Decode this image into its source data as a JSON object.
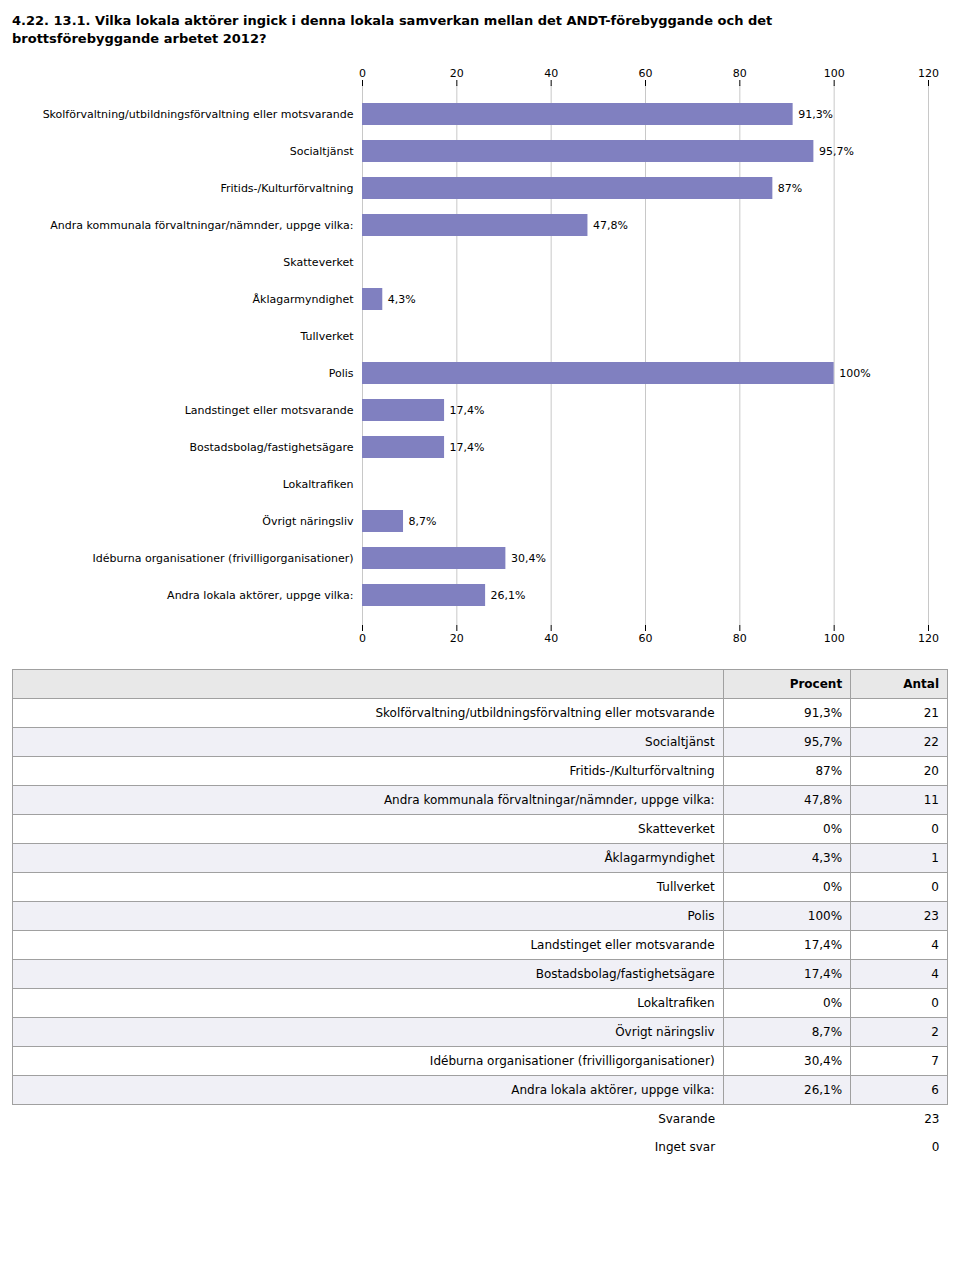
{
  "chart_data": {
    "type": "bar",
    "orientation": "horizontal",
    "title": "4.22. 13.1. Vilka lokala aktörer ingick i denna lokala samverkan mellan det ANDT-förebyggande och det\nbrottsförebyggande arbetet 2012?",
    "categories": [
      "Skolförvaltning/utbildningsförvaltning eller motsvarande",
      "Socialtjänst",
      "Fritids-/Kulturförvaltning",
      "Andra kommunala förvaltningar/nämnder, uppge vilka:",
      "Skatteverket",
      "Åklagarmyndighet",
      "Tullverket",
      "Polis",
      "Landstinget eller motsvarande",
      "Bostadsbolag/fastighetsägare",
      "Lokaltrafiken",
      "Övrigt näringsliv",
      "Idéburna organisationer (frivilligorganisationer)",
      "Andra lokala aktörer, uppge vilka:"
    ],
    "values": [
      91.3,
      95.7,
      87.0,
      47.8,
      0.0,
      4.3,
      0.0,
      100.0,
      17.4,
      17.4,
      0.0,
      8.7,
      30.4,
      26.1
    ],
    "value_labels": [
      "91,3%",
      "95,7%",
      "87%",
      "47,8%",
      null,
      "4,3%",
      null,
      "100%",
      "17,4%",
      "17,4%",
      null,
      "8,7%",
      "30,4%",
      "26,1%"
    ],
    "data_labels": true,
    "color": "#8080C0",
    "xlim": [
      0,
      120
    ],
    "xticks": [
      0,
      20,
      40,
      60,
      80,
      100,
      120
    ],
    "grid": true,
    "table": {
      "columns": [
        "Procent",
        "Antal"
      ],
      "procent": [
        "91,3%",
        "95,7%",
        "87%",
        "47,8%",
        "0%",
        "4,3%",
        "0%",
        "100%",
        "17,4%",
        "17,4%",
        "0%",
        "8,7%",
        "30,4%",
        "26,1%"
      ],
      "antal": [
        21,
        22,
        20,
        11,
        0,
        1,
        0,
        23,
        4,
        4,
        0,
        2,
        7,
        6
      ],
      "footer": [
        {
          "label": "Svarande",
          "antal": 23
        },
        {
          "label": "Inget svar",
          "antal": 0
        }
      ]
    }
  }
}
